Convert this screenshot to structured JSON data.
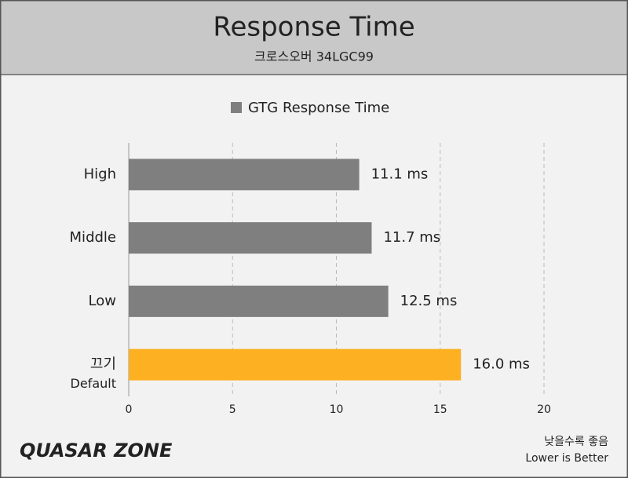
{
  "chart_data": {
    "type": "hbar",
    "title": "Response Time",
    "subtitle": "크로스오버 34LGC99",
    "categories": [
      "High",
      "Middle",
      "Low",
      "끄기"
    ],
    "category_notes": [
      null,
      null,
      null,
      "Default"
    ],
    "series": [
      {
        "name": "GTG Response Time",
        "color": "#7f7f7f",
        "colors": [
          "#7f7f7f",
          "#7f7f7f",
          "#7f7f7f",
          "#fdb022"
        ],
        "values": [
          11.1,
          11.7,
          12.5,
          16.0
        ],
        "value_labels": [
          "11.1 ms",
          "11.7 ms",
          "12.5 ms",
          "16.0 ms"
        ]
      }
    ],
    "xlim": [
      0,
      20
    ],
    "xticks": [
      0,
      5,
      10,
      15,
      20
    ],
    "grid": true,
    "legend": "top",
    "logo": "QUASAR ZONE",
    "note": "낮을수록 좋음",
    "note_en": "Lower is Better"
  }
}
